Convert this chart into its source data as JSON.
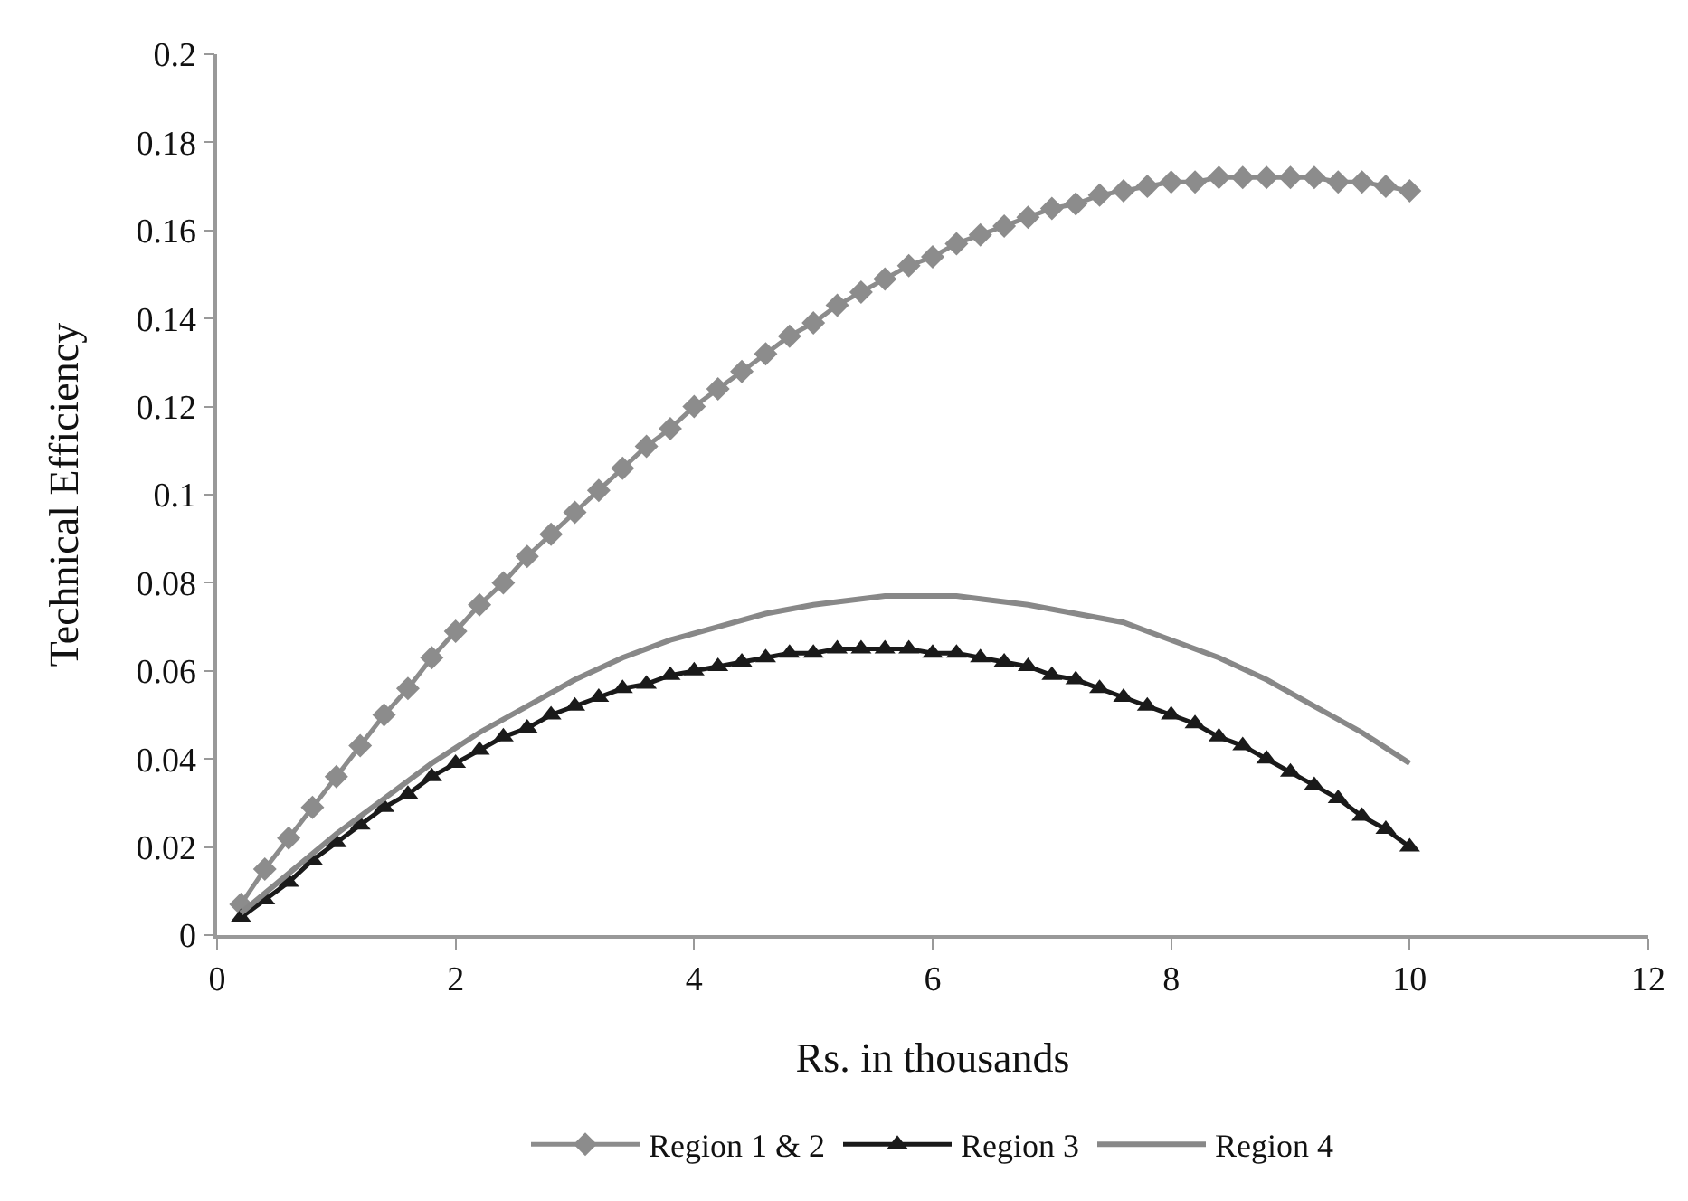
{
  "chart_data": {
    "type": "line",
    "xlabel": "Rs. in thousands",
    "ylabel": "Technical Efficiency",
    "xlim": [
      0,
      12
    ],
    "xticks": [
      0,
      2,
      4,
      6,
      8,
      10,
      12
    ],
    "ylim": [
      0,
      0.2
    ],
    "yticks": [
      0,
      0.02,
      0.04,
      0.06,
      0.08,
      {
        "value": 0.1,
        "label": "0.1"
      },
      0.12,
      0.14,
      0.16,
      0.18,
      {
        "value": 0.2,
        "label": "0.2"
      }
    ],
    "grid": false,
    "legend": "bottom",
    "x": [
      0.2,
      0.4,
      0.6,
      0.8,
      1.0,
      1.2,
      1.4,
      1.6,
      1.8,
      2.0,
      2.2,
      2.4,
      2.6,
      2.8,
      3.0,
      3.2,
      3.4,
      3.6,
      3.8,
      4.0,
      4.2,
      4.4,
      4.6,
      4.8,
      5.0,
      5.2,
      5.4,
      5.6,
      5.8,
      6.0,
      6.2,
      6.4,
      6.6,
      6.8,
      7.0,
      7.2,
      7.4,
      7.6,
      7.8,
      8.0,
      8.2,
      8.4,
      8.6,
      8.8,
      9.0,
      9.2,
      9.4,
      9.6,
      9.8,
      10
    ],
    "series": [
      {
        "name": "Region 1 & 2",
        "color": "#8c8c8c",
        "marker": "diamond",
        "values": [
          0.007,
          0.015,
          0.022,
          0.029,
          0.036,
          0.043,
          0.05,
          0.056,
          0.063,
          0.069,
          0.075,
          0.08,
          0.086,
          0.091,
          0.096,
          0.101,
          0.106,
          0.111,
          0.115,
          0.12,
          0.124,
          0.128,
          0.132,
          0.136,
          0.139,
          0.143,
          0.146,
          0.149,
          0.152,
          0.154,
          0.157,
          0.159,
          0.161,
          0.163,
          0.165,
          0.166,
          0.168,
          0.169,
          0.17,
          0.171,
          0.171,
          0.172,
          0.172,
          0.172,
          0.172,
          0.172,
          0.171,
          0.171,
          0.17,
          0.169
        ]
      },
      {
        "name": "Region 3",
        "color": "#1a1a1a",
        "marker": "triangle",
        "values": [
          0.004,
          0.008,
          0.012,
          0.017,
          0.021,
          0.025,
          0.029,
          0.032,
          0.036,
          0.039,
          0.042,
          0.045,
          0.047,
          0.05,
          0.052,
          0.054,
          0.056,
          0.057,
          0.059,
          0.06,
          0.061,
          0.062,
          0.063,
          0.064,
          0.064,
          0.065,
          0.065,
          0.065,
          0.065,
          0.064,
          0.064,
          0.063,
          0.062,
          0.061,
          0.059,
          0.058,
          0.056,
          0.054,
          0.052,
          0.05,
          0.048,
          0.045,
          0.043,
          0.04,
          0.037,
          0.034,
          0.031,
          0.027,
          0.024,
          0.02
        ]
      },
      {
        "name": "Region 4",
        "color": "#888888",
        "marker": "none",
        "x": [
          0.2,
          0.6,
          1.0,
          1.4,
          1.8,
          2.2,
          2.6,
          3.0,
          3.4,
          3.8,
          4.2,
          4.6,
          5.0,
          5.6,
          6.2,
          6.8,
          7.2,
          7.6,
          8.0,
          8.4,
          8.8,
          9.2,
          9.6,
          10
        ],
        "values": [
          0.005,
          0.014,
          0.023,
          0.031,
          0.039,
          0.046,
          0.052,
          0.058,
          0.063,
          0.067,
          0.07,
          0.073,
          0.075,
          0.077,
          0.077,
          0.075,
          0.073,
          0.071,
          0.067,
          0.063,
          0.058,
          0.052,
          0.046,
          0.039
        ]
      }
    ]
  }
}
